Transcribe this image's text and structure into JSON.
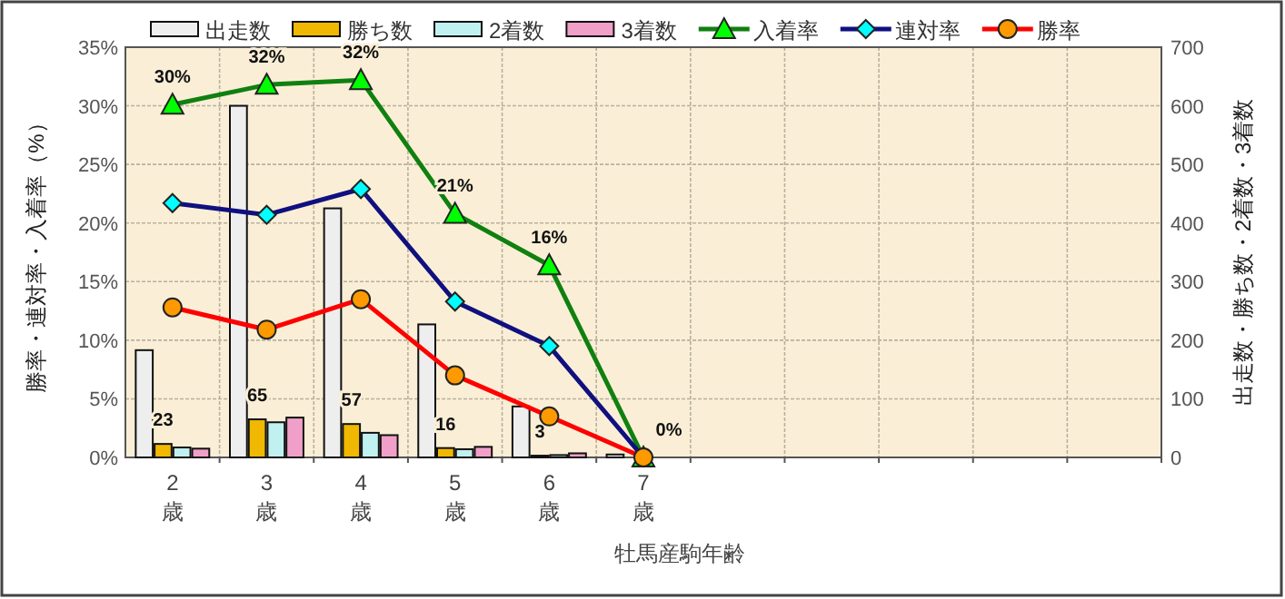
{
  "chart_data": {
    "type": "bar",
    "xlabel": "牡馬産駒年齢",
    "ylabel": "勝率・連対率・入着率（%）",
    "y2label": "出走数・勝ち数・2着数・3着数",
    "categories": [
      "2\n歳",
      "3\n歳",
      "4\n歳",
      "5\n歳",
      "6\n歳",
      "7\n歳",
      null,
      null,
      null,
      null,
      null
    ],
    "ylim": [
      0,
      35
    ],
    "yticks": [
      {
        "value": 0,
        "label": "0%"
      },
      {
        "value": 5,
        "label": "5%"
      },
      {
        "value": 10,
        "label": "10%"
      },
      {
        "value": 15,
        "label": "15%"
      },
      {
        "value": 20,
        "label": "20%"
      },
      {
        "value": 25,
        "label": "25%"
      },
      {
        "value": 30,
        "label": "30%"
      },
      {
        "value": 35,
        "label": "35%"
      }
    ],
    "y2lim": [
      0,
      700
    ],
    "y2ticks": [
      0,
      100,
      200,
      300,
      400,
      500,
      600,
      700
    ],
    "grid": true,
    "legend": "top",
    "series": [
      {
        "name": "出走数",
        "axis": "y2",
        "color": "#eeeeee",
        "values": [
          183,
          600,
          425,
          227,
          87,
          5,
          null,
          null,
          null,
          null,
          null
        ]
      },
      {
        "name": "勝ち数",
        "axis": "y2",
        "color": "#f0b800",
        "values": [
          23,
          65,
          57,
          16,
          3,
          0,
          null,
          null,
          null,
          null,
          null
        ],
        "value_labels": [
          "23",
          "65",
          "57",
          "16",
          "3",
          null,
          null,
          null,
          null,
          null,
          null
        ]
      },
      {
        "name": "2着数",
        "axis": "y2",
        "color": "#c0f0f0",
        "values": [
          17,
          60,
          42,
          14,
          4,
          0,
          null,
          null,
          null,
          null,
          null
        ]
      },
      {
        "name": "3着数",
        "axis": "y2",
        "color": "#f0a0c8",
        "values": [
          15,
          68,
          38,
          18,
          7,
          0,
          null,
          null,
          null,
          null,
          null
        ]
      },
      {
        "name": "入着率",
        "type": "line",
        "color": "#108010",
        "marker": "triangle",
        "values": [
          30.1,
          31.8,
          32.2,
          20.8,
          16.4,
          0,
          null,
          null,
          null,
          null,
          null
        ],
        "value_labels": [
          "30%",
          "32%",
          "32%",
          "21%",
          "16%",
          "0%",
          null,
          null,
          null,
          null,
          null
        ]
      },
      {
        "name": "連対率",
        "type": "line",
        "color": "#101080",
        "marker": "diamond",
        "values": [
          21.7,
          20.7,
          22.9,
          13.3,
          9.5,
          0,
          null,
          null,
          null,
          null,
          null
        ]
      },
      {
        "name": "勝率",
        "type": "line",
        "color": "#ff0000",
        "marker": "circle",
        "values": [
          12.8,
          10.9,
          13.5,
          7.0,
          3.5,
          0,
          null,
          null,
          null,
          null,
          null
        ]
      }
    ]
  }
}
